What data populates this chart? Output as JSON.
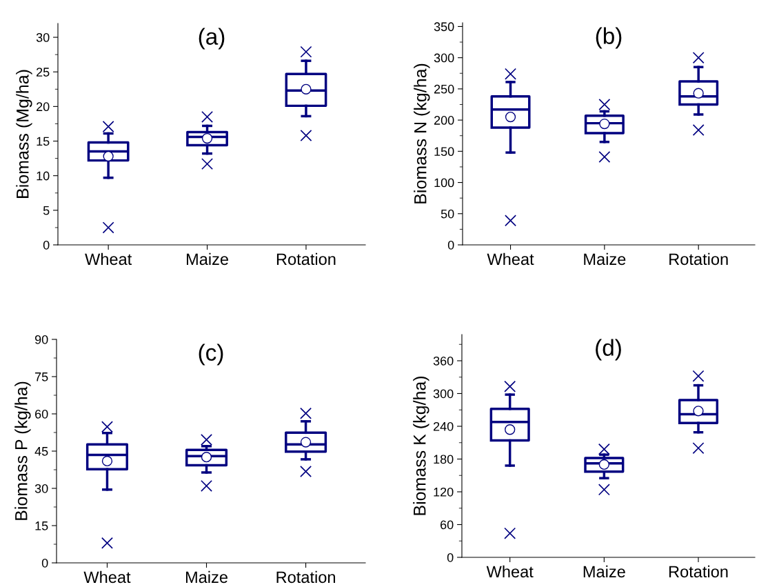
{
  "chart_data": [
    {
      "type": "box",
      "title": "(a)",
      "ylabel": "Biomass (Mg/ha)",
      "categories": [
        "Wheat",
        "Maize",
        "Rotation"
      ],
      "color": "#000080",
      "ylim": [
        0,
        32
      ],
      "yticks": [
        0,
        5,
        10,
        15,
        20,
        25,
        30
      ],
      "grid": false,
      "boxes": [
        {
          "low": 9.7,
          "q1": 12.2,
          "median": 13.5,
          "q3": 14.8,
          "high": 16.1,
          "mean": 12.8,
          "outliers": [
            2.5,
            17.1
          ]
        },
        {
          "low": 13.2,
          "q1": 14.4,
          "median": 15.6,
          "q3": 16.3,
          "high": 17.2,
          "mean": 15.4,
          "outliers": [
            11.7,
            18.5
          ]
        },
        {
          "low": 18.6,
          "q1": 20.1,
          "median": 22.3,
          "q3": 24.7,
          "high": 26.6,
          "mean": 22.5,
          "outliers": [
            15.8,
            27.9
          ]
        }
      ]
    },
    {
      "type": "box",
      "title": "(b)",
      "ylabel": "Biomass N (kg/ha)",
      "categories": [
        "Wheat",
        "Maize",
        "Rotation"
      ],
      "color": "#000080",
      "ylim": [
        0,
        356
      ],
      "yticks": [
        0,
        50,
        100,
        150,
        200,
        250,
        300,
        350
      ],
      "grid": false,
      "boxes": [
        {
          "low": 148,
          "q1": 188,
          "median": 217,
          "q3": 238,
          "high": 261,
          "mean": 205,
          "outliers": [
            39,
            274
          ]
        },
        {
          "low": 165,
          "q1": 179,
          "median": 195,
          "q3": 207,
          "high": 214,
          "mean": 194,
          "outliers": [
            141,
            225
          ]
        },
        {
          "low": 209,
          "q1": 225,
          "median": 238,
          "q3": 262,
          "high": 285,
          "mean": 243,
          "outliers": [
            184,
            300
          ]
        }
      ]
    },
    {
      "type": "box",
      "title": "(c)",
      "ylabel": "Biomass P (kg/ha)",
      "categories": [
        "Wheat",
        "Maize",
        "Rotation"
      ],
      "color": "#000080",
      "ylim": [
        0,
        90
      ],
      "yticks": [
        0,
        15,
        30,
        45,
        60,
        75,
        90
      ],
      "grid": false,
      "boxes": [
        {
          "low": 29.5,
          "q1": 37.7,
          "median": 43.5,
          "q3": 47.7,
          "high": 52.3,
          "mean": 41,
          "outliers": [
            8,
            54.8
          ]
        },
        {
          "low": 36.4,
          "q1": 39.3,
          "median": 43,
          "q3": 45.5,
          "high": 47,
          "mean": 42.6,
          "outliers": [
            31,
            49.6
          ]
        },
        {
          "low": 41.7,
          "q1": 44.8,
          "median": 47.7,
          "q3": 52.4,
          "high": 57,
          "mean": 48.6,
          "outliers": [
            36.8,
            60.2
          ]
        }
      ]
    },
    {
      "type": "box",
      "title": "(d)",
      "ylabel": "Biomass K (kg/ha)",
      "categories": [
        "Wheat",
        "Maize",
        "Rotation"
      ],
      "color": "#000080",
      "ylim": [
        0,
        408
      ],
      "yticks": [
        0,
        60,
        120,
        180,
        240,
        300,
        360
      ],
      "grid": false,
      "boxes": [
        {
          "low": 168,
          "q1": 214,
          "median": 248,
          "q3": 272,
          "high": 298,
          "mean": 234,
          "outliers": [
            44,
            313
          ]
        },
        {
          "low": 145,
          "q1": 157,
          "median": 172,
          "q3": 182,
          "high": 188,
          "mean": 170,
          "outliers": [
            124,
            198
          ]
        },
        {
          "low": 229,
          "q1": 246,
          "median": 262,
          "q3": 288,
          "high": 315,
          "mean": 268,
          "outliers": [
            200,
            332
          ]
        }
      ]
    }
  ]
}
